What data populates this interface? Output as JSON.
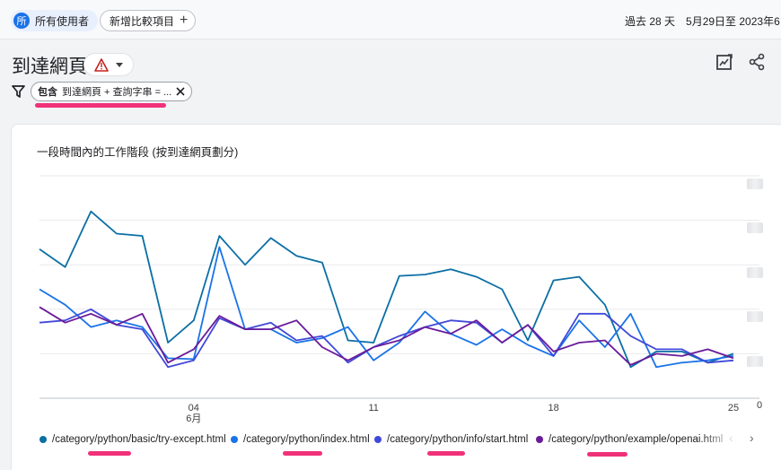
{
  "topbar": {
    "user_chip_avatar": "所",
    "user_chip_label": "所有使用者",
    "add_compare_label": "新增比較項目",
    "date_prefix": "過去 28 天",
    "date_range": "5月29日至 2023年6"
  },
  "page": {
    "title": "到達網頁"
  },
  "filter": {
    "bold": "包含",
    "text": "到達網頁 + 查詢字串 = ..."
  },
  "card": {
    "title": "一段時間內的工作階段 (按到達網頁劃分)"
  },
  "colors": {
    "accent": "#1a73e8",
    "highlight": "#f0317a",
    "warning": "#e37400"
  },
  "chart_data": {
    "type": "line",
    "x": [
      "5月29日",
      "5月30日",
      "5月31日",
      "6月1日",
      "6月2日",
      "6月3日",
      "6月4日",
      "6月5日",
      "6月6日",
      "6月7日",
      "6月8日",
      "6月9日",
      "6月10日",
      "6月11日",
      "6月12日",
      "6月13日",
      "6月14日",
      "6月15日",
      "6月16日",
      "6月17日",
      "6月18日",
      "6月19日",
      "6月20日",
      "6月21日",
      "6月22日",
      "6月23日",
      "6月24日",
      "6月25日"
    ],
    "xtick_labels": [
      {
        "label": "04",
        "sub": "6月"
      },
      {
        "label": "11",
        "sub": ""
      },
      {
        "label": "18",
        "sub": ""
      },
      {
        "label": "25",
        "sub": ""
      }
    ],
    "y_zero_label": "0",
    "ylim": [
      0,
      50
    ],
    "series": [
      {
        "name": "/category/python/basic/try-except.html",
        "color": "#0b6fa4",
        "values": [
          33.5,
          29.5,
          42,
          37,
          36.5,
          12.5,
          17.5,
          36.5,
          30,
          36,
          32,
          30.5,
          13,
          12.5,
          27.5,
          27.8,
          29,
          27.3,
          24.5,
          13,
          26.5,
          27.3,
          21,
          7,
          10.5,
          10.5,
          8,
          10
        ]
      },
      {
        "name": "/category/python/index.html",
        "color": "#1a73e8",
        "values": [
          24.5,
          21,
          16,
          17.5,
          16,
          9,
          8.8,
          34,
          15.5,
          15.5,
          12.5,
          13.5,
          16,
          8.5,
          12.5,
          19.5,
          14.5,
          12,
          15.5,
          12,
          9.5,
          17.5,
          11.5,
          19,
          7,
          8,
          8.5,
          9.5
        ]
      },
      {
        "name": "/category/python/info/start.html",
        "color": "#4149d9",
        "values": [
          17,
          17.5,
          20,
          16.5,
          15.5,
          7,
          8.5,
          18,
          15.5,
          17,
          13,
          14,
          8,
          11.5,
          14,
          16,
          17.5,
          17,
          12.5,
          16.5,
          9.5,
          19,
          19,
          14,
          11,
          11,
          8,
          8.5
        ]
      },
      {
        "name": "/category/python/example/openai.html",
        "color": "#6a1b9a",
        "values": [
          20.5,
          17,
          19,
          16.5,
          19,
          8,
          11,
          18.5,
          15.5,
          15.5,
          17.5,
          11.5,
          8.5,
          11.5,
          13,
          16,
          14.5,
          17.5,
          12.5,
          16.5,
          10.5,
          12.5,
          13,
          7.5,
          10,
          9.5,
          11,
          9
        ]
      }
    ]
  }
}
